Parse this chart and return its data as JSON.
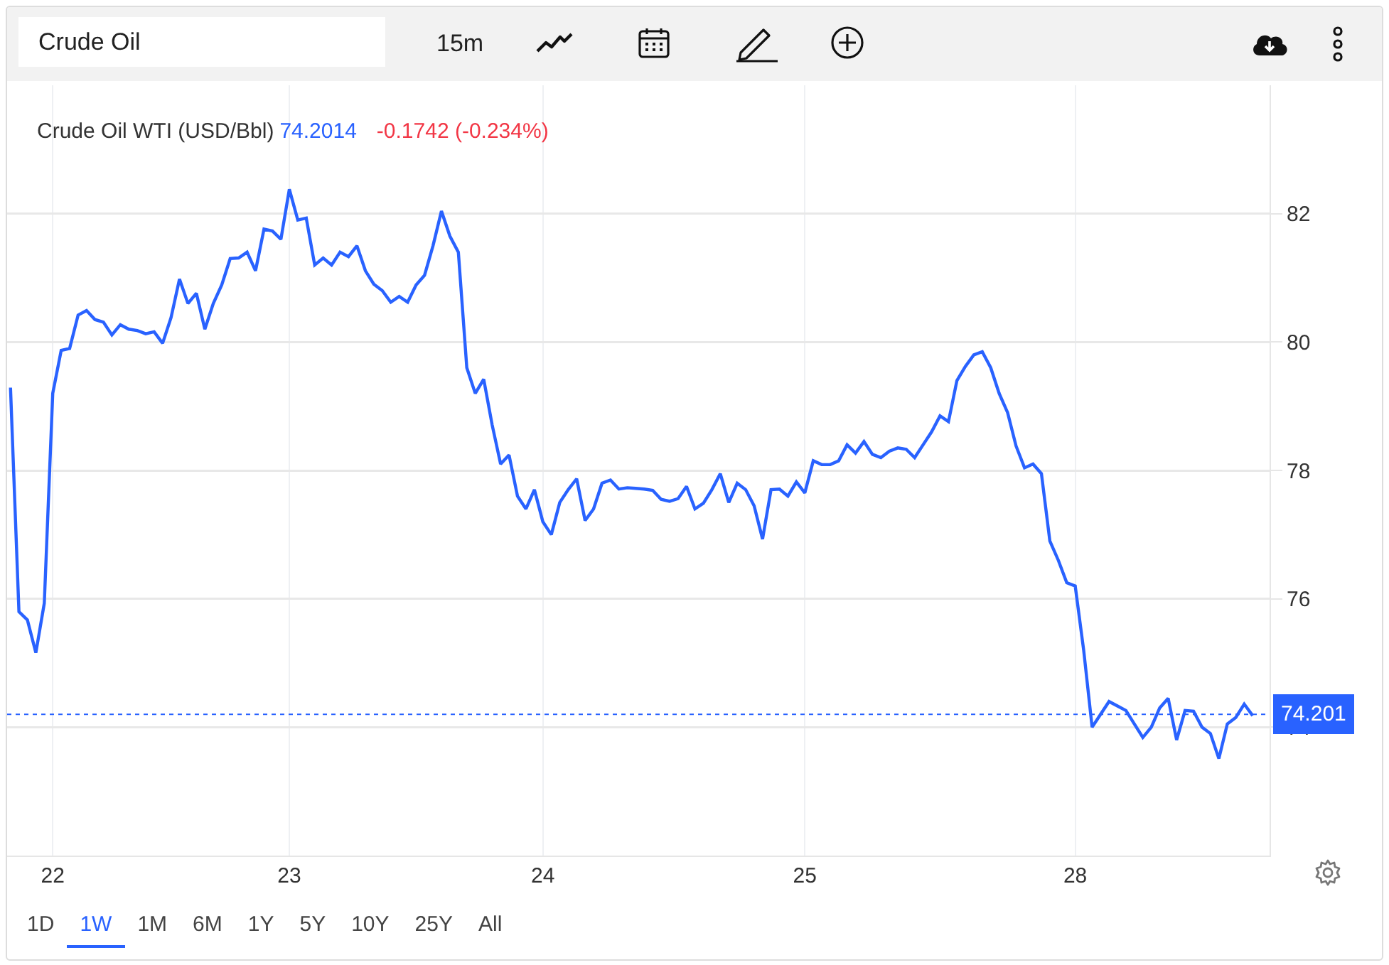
{
  "chart_data": {
    "type": "line",
    "title": "Crude Oil WTI (USD/Bbl)",
    "annotations": [
      "Crude Oil",
      "15m",
      "74.2014",
      "-0.1742 (-0.234%)",
      "1D",
      "1W",
      "1M",
      "6M",
      "1Y",
      "5Y",
      "10Y",
      "25Y",
      "All"
    ],
    "categories": [
      null,
      null,
      null,
      null,
      null,
      "22",
      null,
      null,
      null,
      null,
      null,
      null,
      null,
      null,
      null,
      null,
      null,
      null,
      null,
      null,
      null,
      null,
      null,
      null,
      null,
      null,
      null,
      null,
      null,
      null,
      null,
      null,
      null,
      "23",
      null,
      null,
      null,
      null,
      null,
      null,
      null,
      null,
      null,
      null,
      null,
      null,
      null,
      null,
      null,
      null,
      null,
      null,
      null,
      null,
      null,
      null,
      null,
      null,
      null,
      null,
      null,
      null,
      null,
      "24",
      null,
      null,
      null,
      null,
      null,
      null,
      null,
      null,
      null,
      null,
      null,
      null,
      null,
      null,
      null,
      null,
      null,
      null,
      null,
      null,
      null,
      null,
      null,
      null,
      null,
      null,
      null,
      null,
      null,
      null,
      "25",
      null,
      null,
      null,
      null,
      null,
      null,
      null,
      null,
      null,
      null,
      null,
      null,
      null,
      null,
      null,
      null,
      null,
      null,
      null,
      null,
      null,
      null,
      null,
      null,
      null,
      null,
      null,
      null,
      null,
      null,
      null,
      "28",
      null,
      null,
      null,
      null,
      null,
      null,
      null,
      null,
      null,
      null,
      null,
      null,
      null,
      null,
      null,
      null,
      null,
      null,
      null,
      null,
      null
    ],
    "series": [
      {
        "color": "#2962ff",
        "values": [
          79.29,
          75.8,
          75.67,
          75.16,
          75.93,
          79.2,
          79.87,
          79.9,
          80.42,
          80.49,
          80.35,
          80.31,
          80.11,
          80.27,
          80.2,
          80.18,
          80.13,
          80.16,
          79.98,
          80.38,
          80.98,
          80.6,
          80.76,
          80.2,
          80.6,
          80.89,
          81.3,
          81.31,
          81.4,
          81.11,
          81.76,
          81.73,
          81.6,
          82.38,
          81.9,
          81.93,
          81.2,
          81.31,
          81.2,
          81.4,
          81.33,
          81.5,
          81.11,
          80.9,
          80.8,
          80.62,
          80.71,
          80.62,
          80.89,
          81.04,
          81.5,
          82.04,
          81.65,
          81.4,
          79.6,
          79.2,
          79.42,
          78.71,
          78.1,
          78.24,
          77.6,
          77.4,
          77.7,
          77.2,
          77.0,
          77.5,
          77.7,
          77.87,
          77.22,
          77.4,
          77.8,
          77.85,
          77.71,
          77.73,
          77.72,
          77.71,
          77.69,
          77.55,
          77.52,
          77.56,
          77.75,
          77.4,
          77.49,
          77.7,
          77.95,
          77.5,
          77.8,
          77.7,
          77.45,
          76.93,
          77.7,
          77.71,
          77.6,
          77.82,
          77.65,
          78.15,
          78.09,
          78.09,
          78.15,
          78.4,
          78.27,
          78.45,
          78.25,
          78.2,
          78.3,
          78.35,
          78.33,
          78.2,
          78.4,
          78.6,
          78.85,
          78.76,
          79.4,
          79.62,
          79.8,
          79.85,
          79.6,
          79.2,
          78.9,
          78.38,
          78.04,
          78.1,
          77.95,
          76.9,
          76.6,
          76.25,
          76.2,
          75.2,
          74.0,
          74.2,
          74.4,
          74.33,
          74.26,
          74.05,
          73.84,
          74.0,
          74.3,
          74.45,
          73.8,
          74.26,
          74.25,
          74.0,
          73.9,
          73.51,
          74.05,
          74.15,
          74.36,
          74.18
        ]
      }
    ],
    "ylim": [
      72,
      84
    ],
    "yticks": [
      74,
      76,
      78,
      80,
      82
    ],
    "ref_lines": [
      {
        "axis": "y",
        "value": 74.201,
        "label": "74.201",
        "color": "#2962ff",
        "line_style": "dotted"
      }
    ],
    "grid": true,
    "marker": "none",
    "line_style": "solid"
  }
}
